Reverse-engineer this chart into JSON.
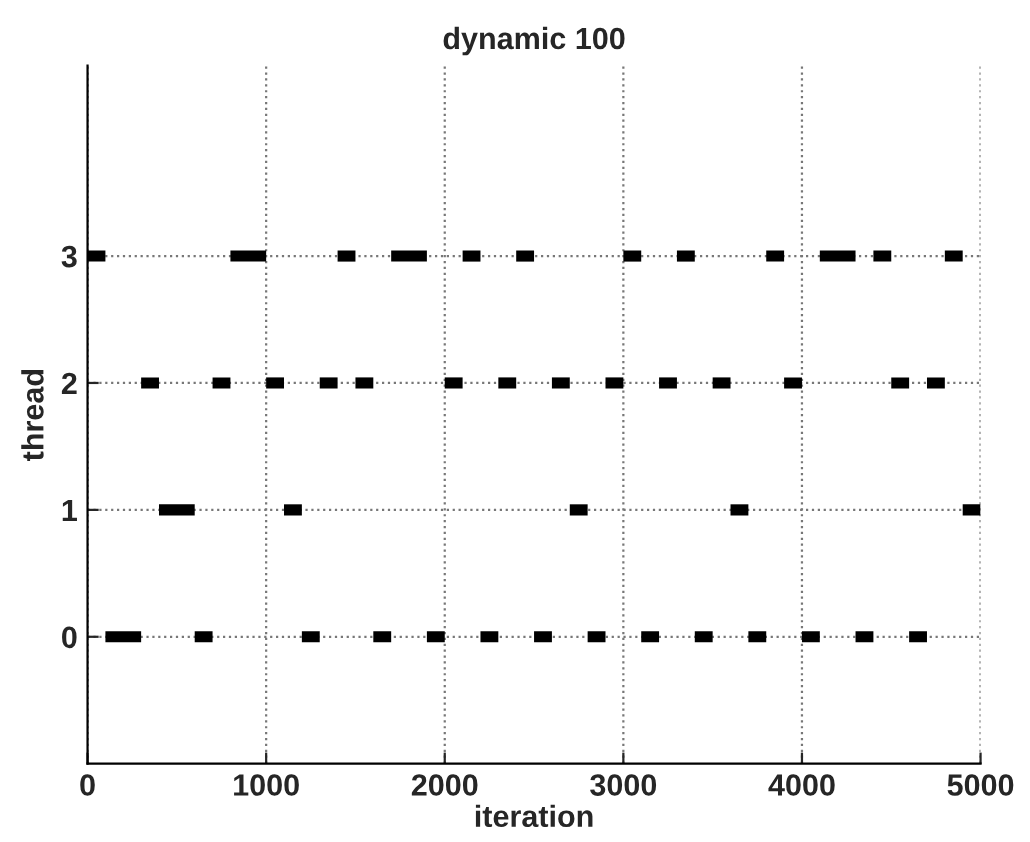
{
  "chart_data": {
    "type": "line",
    "title": "dynamic 100",
    "xlabel": "iteration",
    "ylabel": "thread",
    "xlim": [
      0,
      5000
    ],
    "xticks": [
      0,
      1000,
      2000,
      3000,
      4000,
      5000
    ],
    "ylim": [
      -1,
      4.5
    ],
    "yticks": [
      0,
      1,
      2,
      3
    ],
    "grid": true,
    "marker": "none",
    "series": [
      {
        "color": "#000000",
        "x": [
          100,
          300
        ],
        "values": [
          0,
          0
        ]
      },
      {
        "color": "#000000",
        "x": [
          600,
          700
        ],
        "values": [
          0,
          0
        ]
      },
      {
        "color": "#000000",
        "x": [
          1200,
          1300
        ],
        "values": [
          0,
          0
        ]
      },
      {
        "color": "#000000",
        "x": [
          1600,
          1700
        ],
        "values": [
          0,
          0
        ]
      },
      {
        "color": "#000000",
        "x": [
          1900,
          2000
        ],
        "values": [
          0,
          0
        ]
      },
      {
        "color": "#000000",
        "x": [
          2200,
          2300
        ],
        "values": [
          0,
          0
        ]
      },
      {
        "color": "#000000",
        "x": [
          2500,
          2600
        ],
        "values": [
          0,
          0
        ]
      },
      {
        "color": "#000000",
        "x": [
          2800,
          2900
        ],
        "values": [
          0,
          0
        ]
      },
      {
        "color": "#000000",
        "x": [
          3100,
          3200
        ],
        "values": [
          0,
          0
        ]
      },
      {
        "color": "#000000",
        "x": [
          3400,
          3500
        ],
        "values": [
          0,
          0
        ]
      },
      {
        "color": "#000000",
        "x": [
          3700,
          3800
        ],
        "values": [
          0,
          0
        ]
      },
      {
        "color": "#000000",
        "x": [
          4000,
          4100
        ],
        "values": [
          0,
          0
        ]
      },
      {
        "color": "#000000",
        "x": [
          4300,
          4400
        ],
        "values": [
          0,
          0
        ]
      },
      {
        "color": "#000000",
        "x": [
          4600,
          4700
        ],
        "values": [
          0,
          0
        ]
      },
      {
        "color": "#000000",
        "x": [
          400,
          600
        ],
        "values": [
          1,
          1
        ]
      },
      {
        "color": "#000000",
        "x": [
          1100,
          1200
        ],
        "values": [
          1,
          1
        ]
      },
      {
        "color": "#000000",
        "x": [
          2700,
          2800
        ],
        "values": [
          1,
          1
        ]
      },
      {
        "color": "#000000",
        "x": [
          3600,
          3700
        ],
        "values": [
          1,
          1
        ]
      },
      {
        "color": "#000000",
        "x": [
          4900,
          5000
        ],
        "values": [
          1,
          1
        ]
      },
      {
        "color": "#000000",
        "x": [
          300,
          400
        ],
        "values": [
          2,
          2
        ]
      },
      {
        "color": "#000000",
        "x": [
          700,
          800
        ],
        "values": [
          2,
          2
        ]
      },
      {
        "color": "#000000",
        "x": [
          1000,
          1100
        ],
        "values": [
          2,
          2
        ]
      },
      {
        "color": "#000000",
        "x": [
          1300,
          1400
        ],
        "values": [
          2,
          2
        ]
      },
      {
        "color": "#000000",
        "x": [
          1500,
          1600
        ],
        "values": [
          2,
          2
        ]
      },
      {
        "color": "#000000",
        "x": [
          2000,
          2100
        ],
        "values": [
          2,
          2
        ]
      },
      {
        "color": "#000000",
        "x": [
          2300,
          2400
        ],
        "values": [
          2,
          2
        ]
      },
      {
        "color": "#000000",
        "x": [
          2600,
          2700
        ],
        "values": [
          2,
          2
        ]
      },
      {
        "color": "#000000",
        "x": [
          2900,
          3000
        ],
        "values": [
          2,
          2
        ]
      },
      {
        "color": "#000000",
        "x": [
          3200,
          3300
        ],
        "values": [
          2,
          2
        ]
      },
      {
        "color": "#000000",
        "x": [
          3500,
          3600
        ],
        "values": [
          2,
          2
        ]
      },
      {
        "color": "#000000",
        "x": [
          3900,
          4000
        ],
        "values": [
          2,
          2
        ]
      },
      {
        "color": "#000000",
        "x": [
          4500,
          4600
        ],
        "values": [
          2,
          2
        ]
      },
      {
        "color": "#000000",
        "x": [
          4700,
          4800
        ],
        "values": [
          2,
          2
        ]
      },
      {
        "color": "#000000",
        "x": [
          0,
          100
        ],
        "values": [
          3,
          3
        ]
      },
      {
        "color": "#000000",
        "x": [
          800,
          1000
        ],
        "values": [
          3,
          3
        ]
      },
      {
        "color": "#000000",
        "x": [
          1400,
          1500
        ],
        "values": [
          3,
          3
        ]
      },
      {
        "color": "#000000",
        "x": [
          1700,
          1900
        ],
        "values": [
          3,
          3
        ]
      },
      {
        "color": "#000000",
        "x": [
          2100,
          2200
        ],
        "values": [
          3,
          3
        ]
      },
      {
        "color": "#000000",
        "x": [
          2400,
          2500
        ],
        "values": [
          3,
          3
        ]
      },
      {
        "color": "#000000",
        "x": [
          3000,
          3100
        ],
        "values": [
          3,
          3
        ]
      },
      {
        "color": "#000000",
        "x": [
          3300,
          3400
        ],
        "values": [
          3,
          3
        ]
      },
      {
        "color": "#000000",
        "x": [
          3800,
          3900
        ],
        "values": [
          3,
          3
        ]
      },
      {
        "color": "#000000",
        "x": [
          4100,
          4300
        ],
        "values": [
          3,
          3
        ]
      },
      {
        "color": "#000000",
        "x": [
          4400,
          4500
        ],
        "values": [
          3,
          3
        ]
      },
      {
        "color": "#000000",
        "x": [
          4800,
          4900
        ],
        "values": [
          3,
          3
        ]
      }
    ]
  }
}
